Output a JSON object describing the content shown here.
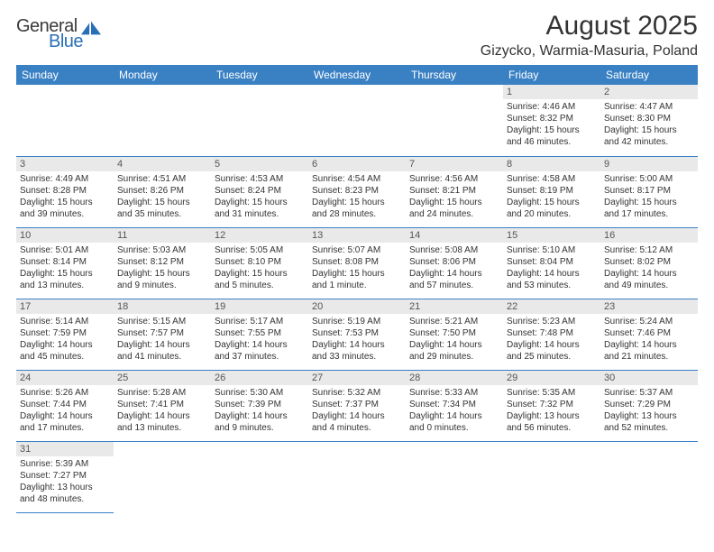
{
  "logo": {
    "part1": "General",
    "part2": "Blue",
    "color1": "#3a3a3a",
    "color2": "#2a6fb5",
    "shape_color": "#2a6fb5"
  },
  "title": "August 2025",
  "location": "Gizycko, Warmia-Masuria, Poland",
  "header_bg": "#3a81c4",
  "header_fg": "#ffffff",
  "daynum_bg": "#e9e9e9",
  "border_color": "#3a81c4",
  "columns": [
    "Sunday",
    "Monday",
    "Tuesday",
    "Wednesday",
    "Thursday",
    "Friday",
    "Saturday"
  ],
  "weeks": [
    [
      null,
      null,
      null,
      null,
      null,
      {
        "n": "1",
        "sunrise": "4:46 AM",
        "sunset": "8:32 PM",
        "dl1": "Daylight: 15 hours",
        "dl2": "and 46 minutes."
      },
      {
        "n": "2",
        "sunrise": "4:47 AM",
        "sunset": "8:30 PM",
        "dl1": "Daylight: 15 hours",
        "dl2": "and 42 minutes."
      }
    ],
    [
      {
        "n": "3",
        "sunrise": "4:49 AM",
        "sunset": "8:28 PM",
        "dl1": "Daylight: 15 hours",
        "dl2": "and 39 minutes."
      },
      {
        "n": "4",
        "sunrise": "4:51 AM",
        "sunset": "8:26 PM",
        "dl1": "Daylight: 15 hours",
        "dl2": "and 35 minutes."
      },
      {
        "n": "5",
        "sunrise": "4:53 AM",
        "sunset": "8:24 PM",
        "dl1": "Daylight: 15 hours",
        "dl2": "and 31 minutes."
      },
      {
        "n": "6",
        "sunrise": "4:54 AM",
        "sunset": "8:23 PM",
        "dl1": "Daylight: 15 hours",
        "dl2": "and 28 minutes."
      },
      {
        "n": "7",
        "sunrise": "4:56 AM",
        "sunset": "8:21 PM",
        "dl1": "Daylight: 15 hours",
        "dl2": "and 24 minutes."
      },
      {
        "n": "8",
        "sunrise": "4:58 AM",
        "sunset": "8:19 PM",
        "dl1": "Daylight: 15 hours",
        "dl2": "and 20 minutes."
      },
      {
        "n": "9",
        "sunrise": "5:00 AM",
        "sunset": "8:17 PM",
        "dl1": "Daylight: 15 hours",
        "dl2": "and 17 minutes."
      }
    ],
    [
      {
        "n": "10",
        "sunrise": "5:01 AM",
        "sunset": "8:14 PM",
        "dl1": "Daylight: 15 hours",
        "dl2": "and 13 minutes."
      },
      {
        "n": "11",
        "sunrise": "5:03 AM",
        "sunset": "8:12 PM",
        "dl1": "Daylight: 15 hours",
        "dl2": "and 9 minutes."
      },
      {
        "n": "12",
        "sunrise": "5:05 AM",
        "sunset": "8:10 PM",
        "dl1": "Daylight: 15 hours",
        "dl2": "and 5 minutes."
      },
      {
        "n": "13",
        "sunrise": "5:07 AM",
        "sunset": "8:08 PM",
        "dl1": "Daylight: 15 hours",
        "dl2": "and 1 minute."
      },
      {
        "n": "14",
        "sunrise": "5:08 AM",
        "sunset": "8:06 PM",
        "dl1": "Daylight: 14 hours",
        "dl2": "and 57 minutes."
      },
      {
        "n": "15",
        "sunrise": "5:10 AM",
        "sunset": "8:04 PM",
        "dl1": "Daylight: 14 hours",
        "dl2": "and 53 minutes."
      },
      {
        "n": "16",
        "sunrise": "5:12 AM",
        "sunset": "8:02 PM",
        "dl1": "Daylight: 14 hours",
        "dl2": "and 49 minutes."
      }
    ],
    [
      {
        "n": "17",
        "sunrise": "5:14 AM",
        "sunset": "7:59 PM",
        "dl1": "Daylight: 14 hours",
        "dl2": "and 45 minutes."
      },
      {
        "n": "18",
        "sunrise": "5:15 AM",
        "sunset": "7:57 PM",
        "dl1": "Daylight: 14 hours",
        "dl2": "and 41 minutes."
      },
      {
        "n": "19",
        "sunrise": "5:17 AM",
        "sunset": "7:55 PM",
        "dl1": "Daylight: 14 hours",
        "dl2": "and 37 minutes."
      },
      {
        "n": "20",
        "sunrise": "5:19 AM",
        "sunset": "7:53 PM",
        "dl1": "Daylight: 14 hours",
        "dl2": "and 33 minutes."
      },
      {
        "n": "21",
        "sunrise": "5:21 AM",
        "sunset": "7:50 PM",
        "dl1": "Daylight: 14 hours",
        "dl2": "and 29 minutes."
      },
      {
        "n": "22",
        "sunrise": "5:23 AM",
        "sunset": "7:48 PM",
        "dl1": "Daylight: 14 hours",
        "dl2": "and 25 minutes."
      },
      {
        "n": "23",
        "sunrise": "5:24 AM",
        "sunset": "7:46 PM",
        "dl1": "Daylight: 14 hours",
        "dl2": "and 21 minutes."
      }
    ],
    [
      {
        "n": "24",
        "sunrise": "5:26 AM",
        "sunset": "7:44 PM",
        "dl1": "Daylight: 14 hours",
        "dl2": "and 17 minutes."
      },
      {
        "n": "25",
        "sunrise": "5:28 AM",
        "sunset": "7:41 PM",
        "dl1": "Daylight: 14 hours",
        "dl2": "and 13 minutes."
      },
      {
        "n": "26",
        "sunrise": "5:30 AM",
        "sunset": "7:39 PM",
        "dl1": "Daylight: 14 hours",
        "dl2": "and 9 minutes."
      },
      {
        "n": "27",
        "sunrise": "5:32 AM",
        "sunset": "7:37 PM",
        "dl1": "Daylight: 14 hours",
        "dl2": "and 4 minutes."
      },
      {
        "n": "28",
        "sunrise": "5:33 AM",
        "sunset": "7:34 PM",
        "dl1": "Daylight: 14 hours",
        "dl2": "and 0 minutes."
      },
      {
        "n": "29",
        "sunrise": "5:35 AM",
        "sunset": "7:32 PM",
        "dl1": "Daylight: 13 hours",
        "dl2": "and 56 minutes."
      },
      {
        "n": "30",
        "sunrise": "5:37 AM",
        "sunset": "7:29 PM",
        "dl1": "Daylight: 13 hours",
        "dl2": "and 52 minutes."
      }
    ],
    [
      {
        "n": "31",
        "sunrise": "5:39 AM",
        "sunset": "7:27 PM",
        "dl1": "Daylight: 13 hours",
        "dl2": "and 48 minutes."
      },
      null,
      null,
      null,
      null,
      null,
      null
    ]
  ]
}
